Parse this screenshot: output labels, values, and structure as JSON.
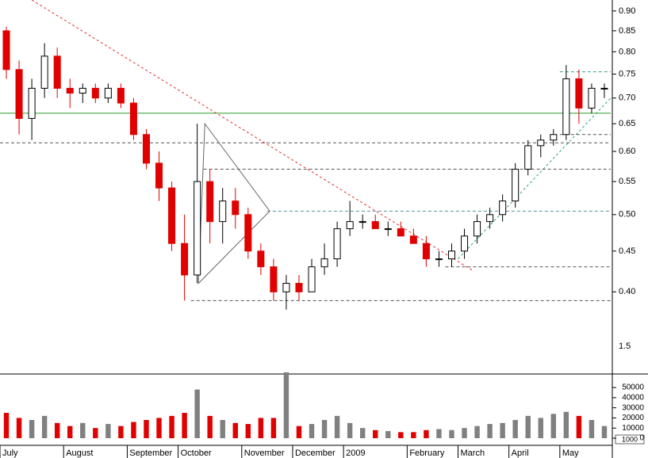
{
  "chart_data": {
    "type": "candlestick",
    "log_scale": true,
    "categories": [
      "July",
      null,
      null,
      null,
      null,
      "August",
      null,
      null,
      null,
      null,
      "September",
      null,
      null,
      null,
      "October",
      null,
      null,
      null,
      null,
      "November",
      null,
      null,
      null,
      "December",
      null,
      null,
      null,
      "2009",
      null,
      null,
      null,
      null,
      "February",
      null,
      null,
      null,
      "March",
      null,
      null,
      null,
      "April",
      null,
      null,
      null,
      "May",
      null,
      null,
      null
    ],
    "ohlc": [
      [
        0.85,
        0.86,
        0.74,
        0.76
      ],
      [
        0.76,
        0.78,
        0.63,
        0.66
      ],
      [
        0.66,
        0.74,
        0.62,
        0.72
      ],
      [
        0.72,
        0.82,
        0.7,
        0.79
      ],
      [
        0.79,
        0.81,
        0.7,
        0.72
      ],
      [
        0.72,
        0.74,
        0.68,
        0.71
      ],
      [
        0.71,
        0.73,
        0.69,
        0.72
      ],
      [
        0.72,
        0.73,
        0.69,
        0.7
      ],
      [
        0.7,
        0.73,
        0.69,
        0.72
      ],
      [
        0.72,
        0.73,
        0.68,
        0.69
      ],
      [
        0.69,
        0.7,
        0.62,
        0.63
      ],
      [
        0.63,
        0.64,
        0.57,
        0.58
      ],
      [
        0.58,
        0.6,
        0.52,
        0.54
      ],
      [
        0.54,
        0.55,
        0.45,
        0.46
      ],
      [
        0.46,
        0.5,
        0.39,
        0.42
      ],
      [
        0.42,
        0.65,
        0.41,
        0.55
      ],
      [
        0.55,
        0.57,
        0.46,
        0.49
      ],
      [
        0.49,
        0.54,
        0.46,
        0.52
      ],
      [
        0.52,
        0.54,
        0.48,
        0.5
      ],
      [
        0.5,
        0.51,
        0.44,
        0.45
      ],
      [
        0.45,
        0.46,
        0.42,
        0.43
      ],
      [
        0.43,
        0.44,
        0.39,
        0.4
      ],
      [
        0.4,
        0.42,
        0.38,
        0.41
      ],
      [
        0.41,
        0.42,
        0.39,
        0.4
      ],
      [
        0.4,
        0.44,
        0.4,
        0.43
      ],
      [
        0.43,
        0.46,
        0.42,
        0.44
      ],
      [
        0.44,
        0.49,
        0.43,
        0.48
      ],
      [
        0.48,
        0.52,
        0.47,
        0.49
      ],
      [
        0.49,
        0.5,
        0.48,
        0.49
      ],
      [
        0.49,
        0.5,
        0.48,
        0.48
      ],
      [
        0.48,
        0.49,
        0.47,
        0.48
      ],
      [
        0.48,
        0.49,
        0.47,
        0.47
      ],
      [
        0.47,
        0.48,
        0.46,
        0.46
      ],
      [
        0.46,
        0.47,
        0.43,
        0.44
      ],
      [
        0.44,
        0.45,
        0.43,
        0.44
      ],
      [
        0.44,
        0.46,
        0.43,
        0.45
      ],
      [
        0.45,
        0.48,
        0.44,
        0.47
      ],
      [
        0.47,
        0.5,
        0.46,
        0.49
      ],
      [
        0.49,
        0.51,
        0.48,
        0.5
      ],
      [
        0.5,
        0.53,
        0.49,
        0.52
      ],
      [
        0.52,
        0.58,
        0.51,
        0.57
      ],
      [
        0.57,
        0.62,
        0.56,
        0.61
      ],
      [
        0.61,
        0.63,
        0.59,
        0.62
      ],
      [
        0.62,
        0.64,
        0.61,
        0.63
      ],
      [
        0.63,
        0.77,
        0.62,
        0.74
      ],
      [
        0.74,
        0.76,
        0.65,
        0.68
      ],
      [
        0.68,
        0.73,
        0.67,
        0.72
      ],
      [
        0.72,
        0.73,
        0.7,
        0.72
      ]
    ],
    "up_color": "#ffffff",
    "down_color": "#e00000",
    "volume_up_color": "#808080",
    "ylim": [
      0.317,
      0.929
    ],
    "yticks": [
      {
        "value": 0.4,
        "label": "0.40"
      },
      0.45,
      {
        "value": 0.5,
        "label": "0.50"
      },
      0.55,
      {
        "value": 0.6,
        "label": "0.60"
      },
      0.65,
      {
        "value": 0.7,
        "label": "0.70"
      },
      0.75,
      {
        "value": 0.8,
        "label": "0.80"
      },
      0.85,
      {
        "value": 0.9,
        "label": "0.90"
      }
    ],
    "price_axis_note": "1.5",
    "levels": [
      {
        "value": 0.67,
        "from": 0,
        "color": "#2e9e2e",
        "dash": false
      },
      {
        "value": 0.615,
        "from": 0,
        "color": "#555555",
        "dash": true
      },
      {
        "value": 0.57,
        "from": 16,
        "color": "#555555",
        "dash": true
      },
      {
        "value": 0.505,
        "from": 21,
        "color": "#5a8fa8",
        "dash": true
      },
      {
        "value": 0.43,
        "from": 35,
        "color": "#555555",
        "dash": true
      },
      {
        "value": 0.39,
        "from": 15,
        "color": "#555555",
        "dash": true
      },
      {
        "value": 0.63,
        "from": 44,
        "color": "#555555",
        "dash": true
      },
      {
        "value": 0.755,
        "from": 44,
        "color": "#3aa08a",
        "dash": true
      }
    ],
    "trendlines": [
      {
        "x": [
          2.5,
          37.2
        ],
        "y": [
          0.929,
          0.425
        ],
        "color": "#e03030"
      },
      {
        "x": [
          36,
          48
        ],
        "y": [
          0.44,
          0.7
        ],
        "color": "#2ea07a"
      }
    ],
    "triangle": {
      "x": [
        16.1,
        21.2,
        15.6
      ],
      "y": [
        0.65,
        0.505,
        0.41
      ],
      "color": "#666666"
    },
    "volume": [
      25000,
      20000,
      18000,
      22000,
      15000,
      12000,
      15000,
      10000,
      14000,
      12000,
      16000,
      18000,
      20000,
      22000,
      25000,
      48000,
      22000,
      18000,
      15000,
      14000,
      20000,
      20000,
      65000,
      12000,
      14000,
      18000,
      22000,
      15000,
      10000,
      8000,
      7000,
      6000,
      6000,
      8000,
      9000,
      8000,
      10000,
      12000,
      14000,
      15000,
      18000,
      22000,
      20000,
      24000,
      26000,
      22000,
      18000,
      12000
    ],
    "volume_ylim": [
      0,
      61000
    ],
    "volume_yticks": [
      0,
      10000,
      20000,
      30000,
      40000,
      50000
    ],
    "volume_unit_label": "1000"
  }
}
